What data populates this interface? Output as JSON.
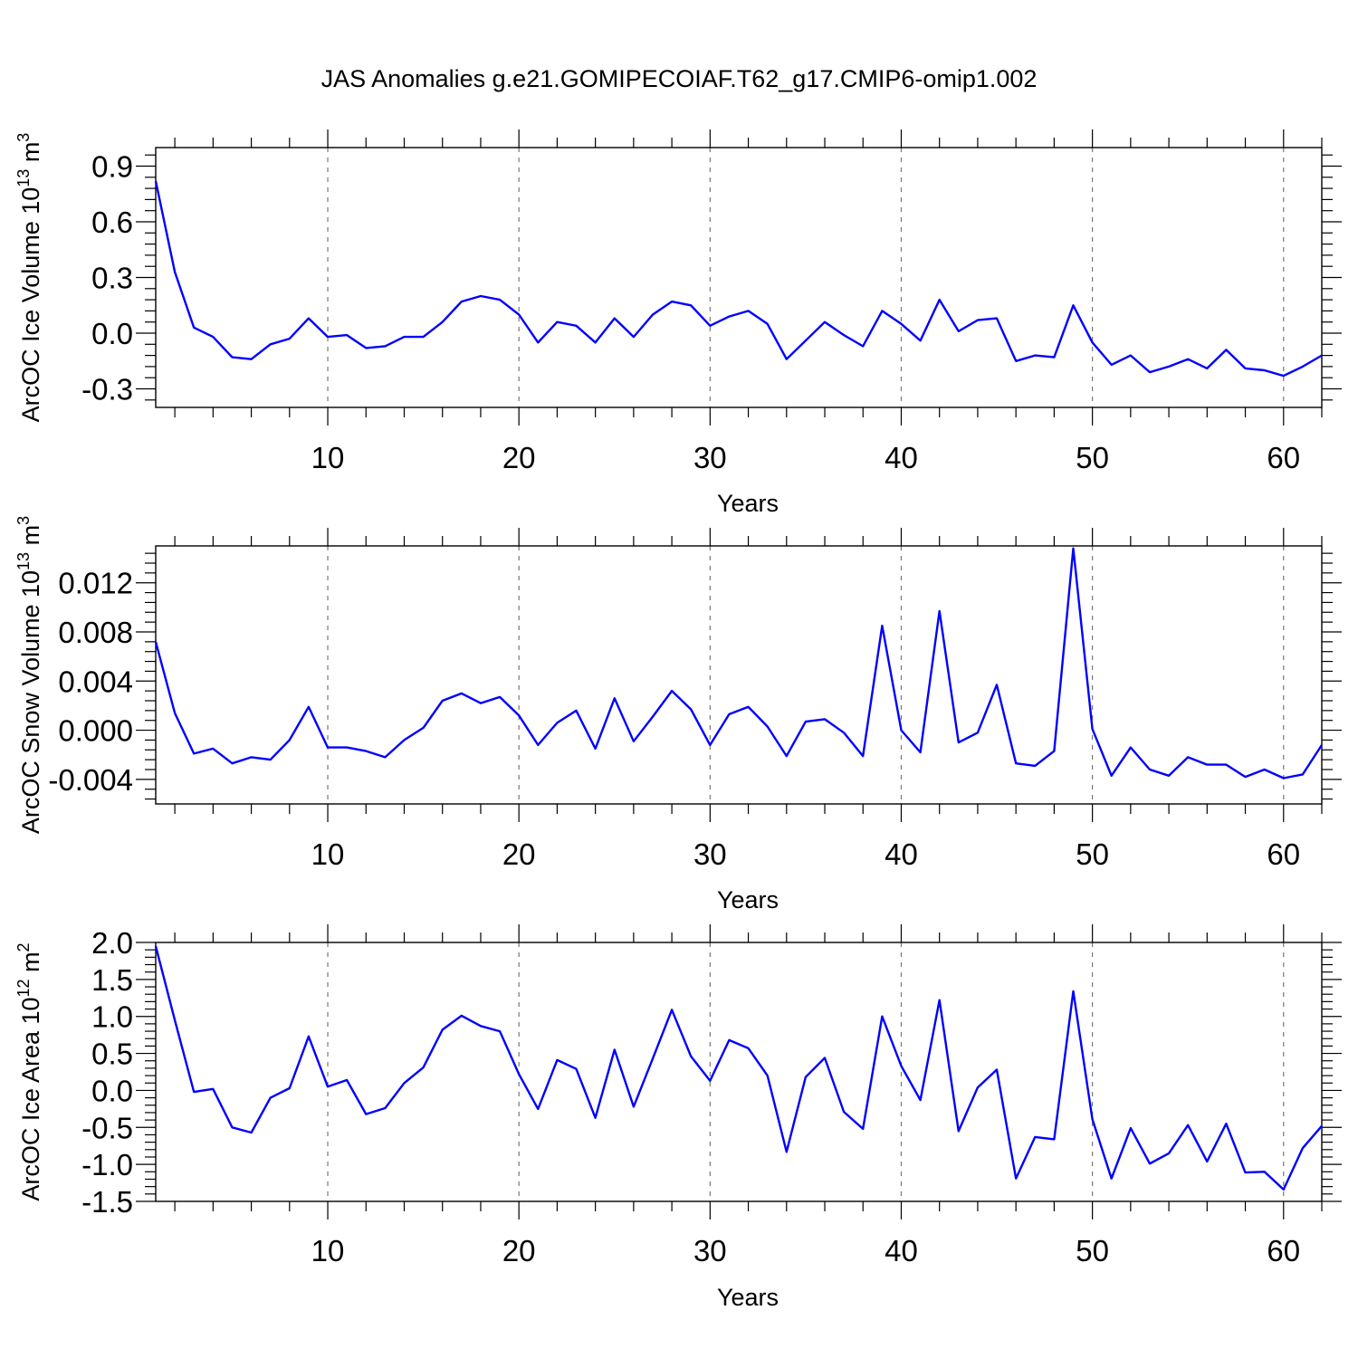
{
  "figure_title": "JAS Anomalies g.e21.GOMIPECOIAF.T62_g17.CMIP6-omip1.002",
  "chart_data": [
    {
      "type": "line",
      "title": "JAS Anomalies g.e21.GOMIPECOIAF.T62_g17.CMIP6-omip1.002",
      "xlabel": "Years",
      "ylabel": {
        "base": "ArcOC Ice Volume 10",
        "exp": "13",
        "unit": " m",
        "unit_exp": "3"
      },
      "xlim": [
        1,
        62
      ],
      "ylim": [
        -0.4,
        1.0
      ],
      "xticks": [
        10,
        20,
        30,
        40,
        50,
        60
      ],
      "xtick_labels": [
        "10",
        "20",
        "30",
        "40",
        "50",
        "60"
      ],
      "yticks": [
        -0.3,
        0.0,
        0.3,
        0.6,
        0.9
      ],
      "ytick_labels": [
        "-0.3",
        "0.0",
        "0.3",
        "0.6",
        "0.9"
      ],
      "grid": "vertical-dashed",
      "series": [
        {
          "name": "ArcOC Ice Volume",
          "color": "#0000ff",
          "x": [
            1,
            2,
            3,
            4,
            5,
            6,
            7,
            8,
            9,
            10,
            11,
            12,
            13,
            14,
            15,
            16,
            17,
            18,
            19,
            20,
            21,
            22,
            23,
            24,
            25,
            26,
            27,
            28,
            29,
            30,
            31,
            32,
            33,
            34,
            35,
            36,
            37,
            38,
            39,
            40,
            41,
            42,
            43,
            44,
            45,
            46,
            47,
            48,
            49,
            50,
            51,
            52,
            53,
            54,
            55,
            56,
            57,
            58,
            59,
            60,
            61,
            62
          ],
          "values": [
            0.82,
            0.33,
            0.03,
            -0.02,
            -0.13,
            -0.14,
            -0.06,
            -0.03,
            0.08,
            -0.02,
            -0.01,
            -0.08,
            -0.07,
            -0.02,
            -0.02,
            0.06,
            0.17,
            0.2,
            0.18,
            0.1,
            -0.05,
            0.06,
            0.04,
            -0.05,
            0.08,
            -0.02,
            0.1,
            0.17,
            0.15,
            0.04,
            0.09,
            0.12,
            0.05,
            -0.14,
            -0.04,
            0.06,
            -0.01,
            -0.07,
            0.12,
            0.05,
            -0.04,
            0.18,
            0.01,
            0.07,
            0.08,
            -0.15,
            -0.12,
            -0.13,
            0.15,
            -0.05,
            -0.17,
            -0.12,
            -0.21,
            -0.18,
            -0.14,
            -0.19,
            -0.09,
            -0.19,
            -0.2,
            -0.23,
            -0.18,
            -0.12
          ]
        }
      ]
    },
    {
      "type": "line",
      "title": "",
      "xlabel": "Years",
      "ylabel": {
        "base": "ArcOC Snow Volume 10",
        "exp": "13",
        "unit": " m",
        "unit_exp": "3"
      },
      "xlim": [
        1,
        62
      ],
      "ylim": [
        -0.006,
        0.015
      ],
      "xticks": [
        10,
        20,
        30,
        40,
        50,
        60
      ],
      "xtick_labels": [
        "10",
        "20",
        "30",
        "40",
        "50",
        "60"
      ],
      "yticks": [
        -0.004,
        0.0,
        0.004,
        0.008,
        0.012
      ],
      "ytick_labels": [
        "-0.004",
        "0.000",
        "0.004",
        "0.008",
        "0.012"
      ],
      "grid": "vertical-dashed",
      "series": [
        {
          "name": "ArcOC Snow Volume",
          "color": "#0000ff",
          "x": [
            1,
            2,
            3,
            4,
            5,
            6,
            7,
            8,
            9,
            10,
            11,
            12,
            13,
            14,
            15,
            16,
            17,
            18,
            19,
            20,
            21,
            22,
            23,
            24,
            25,
            26,
            27,
            28,
            29,
            30,
            31,
            32,
            33,
            34,
            35,
            36,
            37,
            38,
            39,
            40,
            41,
            42,
            43,
            44,
            45,
            46,
            47,
            48,
            49,
            50,
            51,
            52,
            53,
            54,
            55,
            56,
            57,
            58,
            59,
            60,
            61,
            62
          ],
          "values": [
            0.0072,
            0.0014,
            -0.0019,
            -0.0015,
            -0.0027,
            -0.0022,
            -0.0024,
            -0.0008,
            0.0019,
            -0.0014,
            -0.0014,
            -0.0017,
            -0.0022,
            -0.0008,
            0.0002,
            0.0024,
            0.003,
            0.0022,
            0.0027,
            0.0012,
            -0.0012,
            0.0006,
            0.0016,
            -0.0015,
            0.0026,
            -0.0009,
            0.0011,
            0.0032,
            0.0017,
            -0.0012,
            0.0013,
            0.0019,
            0.0003,
            -0.0021,
            0.0007,
            0.0009,
            -0.0002,
            -0.0021,
            0.0085,
            0.0,
            -0.0018,
            0.0097,
            -0.001,
            -0.0002,
            0.0037,
            -0.0027,
            -0.0029,
            -0.0017,
            0.0148,
            0.0001,
            -0.0037,
            -0.0014,
            -0.0032,
            -0.0037,
            -0.0022,
            -0.0028,
            -0.0028,
            -0.0038,
            -0.0032,
            -0.0039,
            -0.0036,
            -0.0012
          ]
        }
      ]
    },
    {
      "type": "line",
      "title": "",
      "xlabel": "Years",
      "ylabel": {
        "base": "ArcOC Ice Area 10",
        "exp": "12",
        "unit": " m",
        "unit_exp": "2"
      },
      "xlim": [
        1,
        62
      ],
      "ylim": [
        -1.5,
        2.0
      ],
      "xticks": [
        10,
        20,
        30,
        40,
        50,
        60
      ],
      "xtick_labels": [
        "10",
        "20",
        "30",
        "40",
        "50",
        "60"
      ],
      "yticks": [
        -1.5,
        -1.0,
        -0.5,
        0.0,
        0.5,
        1.0,
        1.5,
        2.0
      ],
      "ytick_labels": [
        "-1.5",
        "-1.0",
        "-0.5",
        "0.0",
        "0.5",
        "1.0",
        "1.5",
        "2.0"
      ],
      "grid": "vertical-dashed",
      "series": [
        {
          "name": "ArcOC Ice Area",
          "color": "#0000ff",
          "x": [
            1,
            2,
            3,
            4,
            5,
            6,
            7,
            8,
            9,
            10,
            11,
            12,
            13,
            14,
            15,
            16,
            17,
            18,
            19,
            20,
            21,
            22,
            23,
            24,
            25,
            26,
            27,
            28,
            29,
            30,
            31,
            32,
            33,
            34,
            35,
            36,
            37,
            38,
            39,
            40,
            41,
            42,
            43,
            44,
            45,
            46,
            47,
            48,
            49,
            50,
            51,
            52,
            53,
            54,
            55,
            56,
            57,
            58,
            59,
            60,
            61,
            62
          ],
          "values": [
            1.95,
            0.95,
            -0.02,
            0.02,
            -0.5,
            -0.57,
            -0.1,
            0.03,
            0.73,
            0.05,
            0.14,
            -0.32,
            -0.24,
            0.1,
            0.31,
            0.82,
            1.01,
            0.87,
            0.8,
            0.22,
            -0.25,
            0.41,
            0.29,
            -0.37,
            0.55,
            -0.22,
            0.43,
            1.09,
            0.46,
            0.13,
            0.68,
            0.57,
            0.2,
            -0.83,
            0.18,
            0.44,
            -0.29,
            -0.52,
            1.0,
            0.33,
            -0.13,
            1.22,
            -0.55,
            0.04,
            0.28,
            -1.19,
            -0.63,
            -0.66,
            1.34,
            -0.39,
            -1.19,
            -0.51,
            -0.99,
            -0.85,
            -0.47,
            -0.96,
            -0.45,
            -1.11,
            -1.1,
            -1.34,
            -0.78,
            -0.48
          ]
        }
      ]
    }
  ]
}
